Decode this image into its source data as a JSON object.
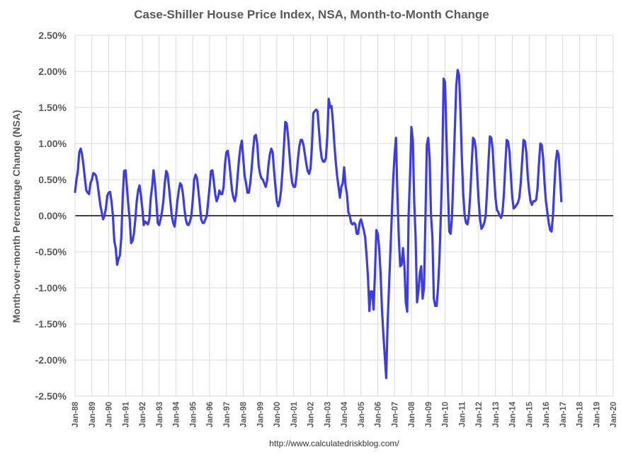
{
  "chart_data": {
    "type": "line",
    "title": "Case-Shiller House Price Index, NSA, Month-to-Month Change",
    "ylabel": "Month-over-month Percentage Change (NSA)",
    "xlabel": "",
    "footer": "http://www.calculatedriskblog.com/",
    "ylim": [
      -2.5,
      2.5
    ],
    "xlim": [
      1988,
      2020
    ],
    "y_ticks": [
      -2.5,
      -2.0,
      -1.5,
      -1.0,
      -0.5,
      0.0,
      0.5,
      1.0,
      1.5,
      2.0,
      2.5
    ],
    "y_tick_labels": [
      "-2.50%",
      "-2.00%",
      "-1.50%",
      "-1.00%",
      "-0.50%",
      "0.00%",
      "0.50%",
      "1.00%",
      "1.50%",
      "2.00%",
      "2.50%"
    ],
    "x_tick_labels": [
      "Jan-88",
      "Jan-89",
      "Jan-90",
      "Jan-91",
      "Jan-92",
      "Jan-93",
      "Jan-94",
      "Jan-95",
      "Jan-96",
      "Jan-97",
      "Jan-98",
      "Jan-99",
      "Jan-00",
      "Jan-01",
      "Jan-02",
      "Jan-03",
      "Jan-04",
      "Jan-05",
      "Jan-06",
      "Jan-07",
      "Jan-08",
      "Jan-09",
      "Jan-10",
      "Jan-11",
      "Jan-12",
      "Jan-13",
      "Jan-14",
      "Jan-15",
      "Jan-16",
      "Jan-17",
      "Jan-18",
      "Jan-19",
      "Jan-20"
    ],
    "grid": "both",
    "legend": "none",
    "series": [
      {
        "color": "#3b3bea",
        "start": "Jan-88",
        "frequency": "monthly",
        "values": [
          0.33,
          0.5,
          0.62,
          0.88,
          0.93,
          0.85,
          0.7,
          0.52,
          0.35,
          0.32,
          0.3,
          0.45,
          0.5,
          0.59,
          0.58,
          0.55,
          0.45,
          0.3,
          0.15,
          0.05,
          -0.05,
          0.0,
          0.1,
          0.28,
          0.32,
          0.33,
          0.2,
          0.0,
          -0.35,
          -0.45,
          -0.68,
          -0.6,
          -0.55,
          -0.3,
          0.25,
          0.62,
          0.63,
          0.4,
          0.15,
          -0.05,
          -0.38,
          -0.35,
          -0.25,
          -0.05,
          0.2,
          0.35,
          0.42,
          0.28,
          0.1,
          -0.13,
          -0.08,
          -0.1,
          -0.12,
          -0.05,
          0.25,
          0.4,
          0.63,
          0.45,
          0.2,
          -0.1,
          -0.13,
          -0.05,
          0.05,
          0.2,
          0.45,
          0.62,
          0.58,
          0.4,
          0.2,
          0.0,
          -0.1,
          -0.15,
          0.0,
          0.2,
          0.35,
          0.45,
          0.42,
          0.3,
          0.1,
          -0.05,
          -0.12,
          -0.13,
          -0.08,
          0.0,
          0.22,
          0.5,
          0.57,
          0.52,
          0.35,
          0.15,
          -0.05,
          -0.1,
          -0.1,
          -0.05,
          0.0,
          0.2,
          0.4,
          0.62,
          0.63,
          0.48,
          0.3,
          0.2,
          0.25,
          0.35,
          0.3,
          0.3,
          0.4,
          0.72,
          0.88,
          0.9,
          0.75,
          0.55,
          0.35,
          0.25,
          0.2,
          0.3,
          0.55,
          0.78,
          0.95,
          1.04,
          0.8,
          0.55,
          0.45,
          0.32,
          0.32,
          0.45,
          0.65,
          0.9,
          1.1,
          1.12,
          1.0,
          0.7,
          0.58,
          0.52,
          0.5,
          0.45,
          0.4,
          0.48,
          0.7,
          0.85,
          0.93,
          0.88,
          0.62,
          0.4,
          0.2,
          0.13,
          0.2,
          0.35,
          0.62,
          0.95,
          1.3,
          1.28,
          1.1,
          0.85,
          0.6,
          0.45,
          0.4,
          0.4,
          0.55,
          0.78,
          0.96,
          1.05,
          1.05,
          0.98,
          0.85,
          0.72,
          0.62,
          0.58,
          0.65,
          0.95,
          1.42,
          1.45,
          1.47,
          1.45,
          1.2,
          0.95,
          0.8,
          0.75,
          0.75,
          0.8,
          1.1,
          1.62,
          1.5,
          1.52,
          1.3,
          1.0,
          0.75,
          0.55,
          0.4,
          0.25,
          0.4,
          0.45,
          0.67,
          0.42,
          0.3,
          0.05,
          0.0,
          -0.1,
          -0.12,
          -0.1,
          -0.12,
          -0.25,
          -0.25,
          -0.1,
          -0.05,
          -0.12,
          -0.2,
          -0.3,
          -0.55,
          -0.85,
          -1.32,
          -1.05,
          -1.05,
          -1.3,
          -0.8,
          -0.2,
          -0.25,
          -0.45,
          -0.8,
          -1.3,
          -1.65,
          -1.95,
          -2.25,
          -1.5,
          -1.0,
          -0.5,
          0.0,
          0.5,
          0.85,
          1.08,
          0.3,
          -0.3,
          -0.7,
          -0.68,
          -0.45,
          -0.7,
          -1.2,
          -1.33,
          0.0,
          0.55,
          1.23,
          1.05,
          0.2,
          -0.3,
          -1.2,
          -1.05,
          -0.8,
          -0.7,
          -1.15,
          -1.0,
          -0.05,
          0.98,
          1.08,
          0.8,
          0.0,
          -0.3,
          -1.15,
          -1.25,
          -1.25,
          -1.0,
          -0.6,
          0.0,
          0.7,
          1.9,
          1.85,
          1.1,
          0.4,
          -0.22,
          -0.25,
          0.0,
          0.6,
          1.2,
          1.8,
          2.02,
          1.95,
          1.45,
          0.8,
          0.3,
          0.0,
          -0.1,
          -0.12,
          0.0,
          0.3,
          0.7,
          1.08,
          1.05,
          0.92,
          0.55,
          0.2,
          -0.05,
          -0.18,
          -0.15,
          -0.1,
          0.0,
          0.35,
          0.75,
          1.1,
          1.08,
          0.92,
          0.55,
          0.25,
          0.08,
          0.05,
          0.0,
          -0.03,
          0.05,
          0.3,
          0.7,
          1.05,
          1.03,
          0.88,
          0.55,
          0.25,
          0.1,
          0.12,
          0.15,
          0.18,
          0.25,
          0.45,
          0.75,
          1.05,
          1.03,
          0.88,
          0.55,
          0.35,
          0.2,
          0.15,
          0.2,
          0.2,
          0.22,
          0.38,
          0.72,
          1.0,
          0.98,
          0.8,
          0.45,
          0.2,
          0.05,
          -0.1,
          -0.2,
          -0.22,
          0.0,
          0.4,
          0.75,
          0.9,
          0.85,
          0.55,
          0.2
        ]
      }
    ]
  }
}
